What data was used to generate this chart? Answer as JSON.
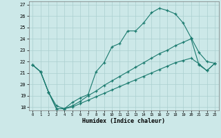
{
  "title": "",
  "xlabel": "Humidex (Indice chaleur)",
  "bg_color": "#cce8e8",
  "line_color": "#1a7a6e",
  "grid_color": "#aacfcf",
  "xlim": [
    -0.5,
    23.5
  ],
  "ylim": [
    17.7,
    27.3
  ],
  "xticks": [
    0,
    1,
    2,
    3,
    4,
    5,
    6,
    7,
    8,
    9,
    10,
    11,
    12,
    13,
    14,
    15,
    16,
    17,
    18,
    19,
    20,
    21,
    22,
    23
  ],
  "yticks": [
    18,
    19,
    20,
    21,
    22,
    23,
    24,
    25,
    26,
    27
  ],
  "curve1_x": [
    0,
    1,
    2,
    3,
    4,
    5,
    6,
    7,
    8,
    9,
    10,
    11,
    12,
    13,
    14,
    15,
    16,
    17,
    18,
    19,
    20,
    21,
    22,
    23
  ],
  "curve1_y": [
    21.7,
    21.1,
    19.3,
    17.85,
    17.85,
    18.4,
    18.8,
    19.1,
    21.1,
    21.9,
    23.3,
    23.6,
    24.7,
    24.7,
    25.4,
    26.3,
    26.7,
    26.5,
    26.2,
    25.4,
    24.1,
    22.8,
    22.0,
    21.85
  ],
  "curve2_x": [
    0,
    1,
    2,
    3,
    4,
    5,
    6,
    7,
    8,
    9,
    10,
    11,
    12,
    13,
    14,
    15,
    16,
    17,
    18,
    19,
    20,
    21,
    22,
    23
  ],
  "curve2_y": [
    21.7,
    21.1,
    19.3,
    18.1,
    17.85,
    18.1,
    18.5,
    19.0,
    19.4,
    19.9,
    20.3,
    20.7,
    21.1,
    21.5,
    21.9,
    22.3,
    22.7,
    23.0,
    23.4,
    23.7,
    24.0,
    21.7,
    21.2,
    21.85
  ],
  "curve3_x": [
    0,
    1,
    2,
    3,
    4,
    5,
    6,
    7,
    8,
    9,
    10,
    11,
    12,
    13,
    14,
    15,
    16,
    17,
    18,
    19,
    20,
    21,
    22,
    23
  ],
  "curve3_y": [
    21.7,
    21.1,
    19.3,
    17.85,
    17.85,
    18.0,
    18.3,
    18.6,
    18.9,
    19.2,
    19.5,
    19.8,
    20.1,
    20.4,
    20.7,
    21.0,
    21.3,
    21.6,
    21.9,
    22.1,
    22.3,
    21.8,
    21.2,
    21.85
  ]
}
